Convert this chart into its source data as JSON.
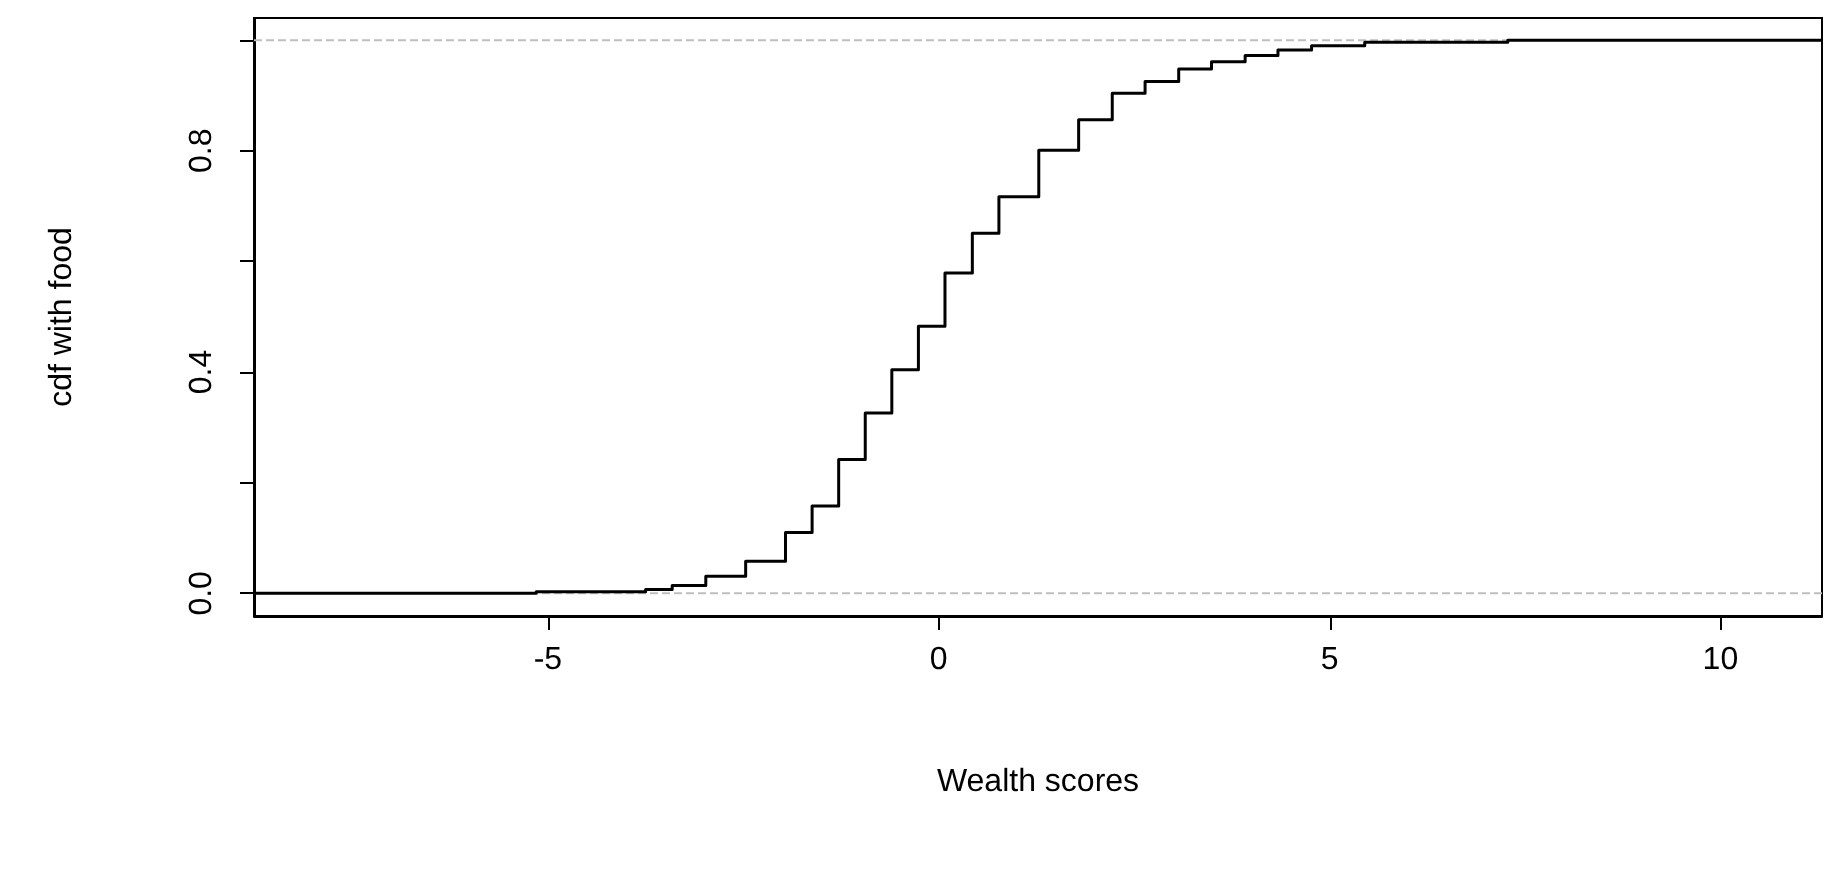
{
  "chart_data": {
    "type": "step",
    "xlabel": "Wealth scores",
    "ylabel": "cdf with food",
    "x": [
      -8.76,
      -5.15,
      -3.75,
      -3.41,
      -2.98,
      -2.47,
      -1.96,
      -1.62,
      -1.28,
      -0.94,
      -0.6,
      -0.26,
      0.08,
      0.43,
      0.77,
      1.28,
      1.79,
      2.22,
      2.64,
      3.07,
      3.49,
      3.92,
      4.34,
      4.77,
      5.45,
      7.28,
      11.3
    ],
    "series": [
      {
        "color": "#000000",
        "values": [
          0,
          0.003,
          0.007,
          0.014,
          0.031,
          0.058,
          0.11,
          0.158,
          0.242,
          0.326,
          0.404,
          0.483,
          0.579,
          0.651,
          0.717,
          0.801,
          0.856,
          0.904,
          0.925,
          0.948,
          0.961,
          0.972,
          0.982,
          0.99,
          0.996,
          1.0,
          1.0
        ]
      }
    ],
    "xlim": [
      -8.76,
      11.3
    ],
    "xticks": [
      -5,
      0,
      5,
      10
    ],
    "ylim": [
      -0.041,
      1.04
    ],
    "yticks": [
      {
        "value": 0,
        "label": "0.0"
      },
      {
        "value": 0.2,
        "label": null
      },
      {
        "value": 0.4,
        "label": "0.4"
      },
      {
        "value": 0.6,
        "label": null
      },
      {
        "value": 0.8,
        "label": "0.8"
      },
      {
        "value": 1.0,
        "label": null
      }
    ],
    "ref_lines": [
      {
        "axis": "y",
        "value": 0,
        "color": "#bebebe",
        "line_style": "dashed"
      },
      {
        "axis": "y",
        "value": 1,
        "color": "#bebebe",
        "line_style": "dashed"
      }
    ],
    "grid": false,
    "marker": "none",
    "line_style": "solid"
  }
}
